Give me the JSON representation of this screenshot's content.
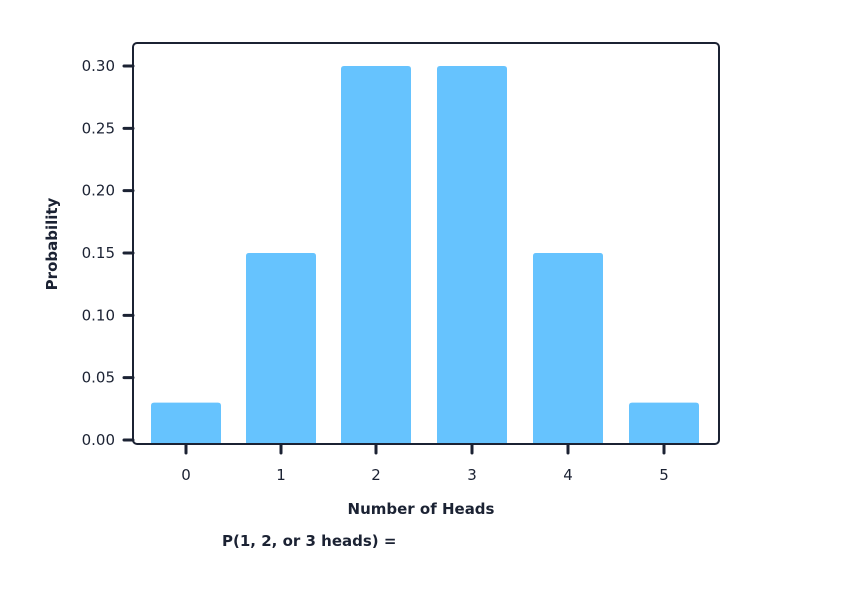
{
  "chart_data": {
    "type": "bar",
    "title": "",
    "xlabel": "Number of Heads",
    "ylabel": "Probability",
    "categories": [
      "0",
      "1",
      "2",
      "3",
      "4",
      "5"
    ],
    "values": [
      0.03,
      0.15,
      0.3,
      0.3,
      0.15,
      0.03
    ],
    "ylim": [
      0,
      0.3
    ],
    "yticks": [
      "0.00",
      "0.05",
      "0.10",
      "0.15",
      "0.20",
      "0.25",
      "0.30"
    ],
    "grid": false,
    "legend": null,
    "bar_color": "#66c3fe",
    "axis_color": "#1b2233"
  },
  "question": {
    "text": "P(1, 2, or 3 heads) ="
  }
}
